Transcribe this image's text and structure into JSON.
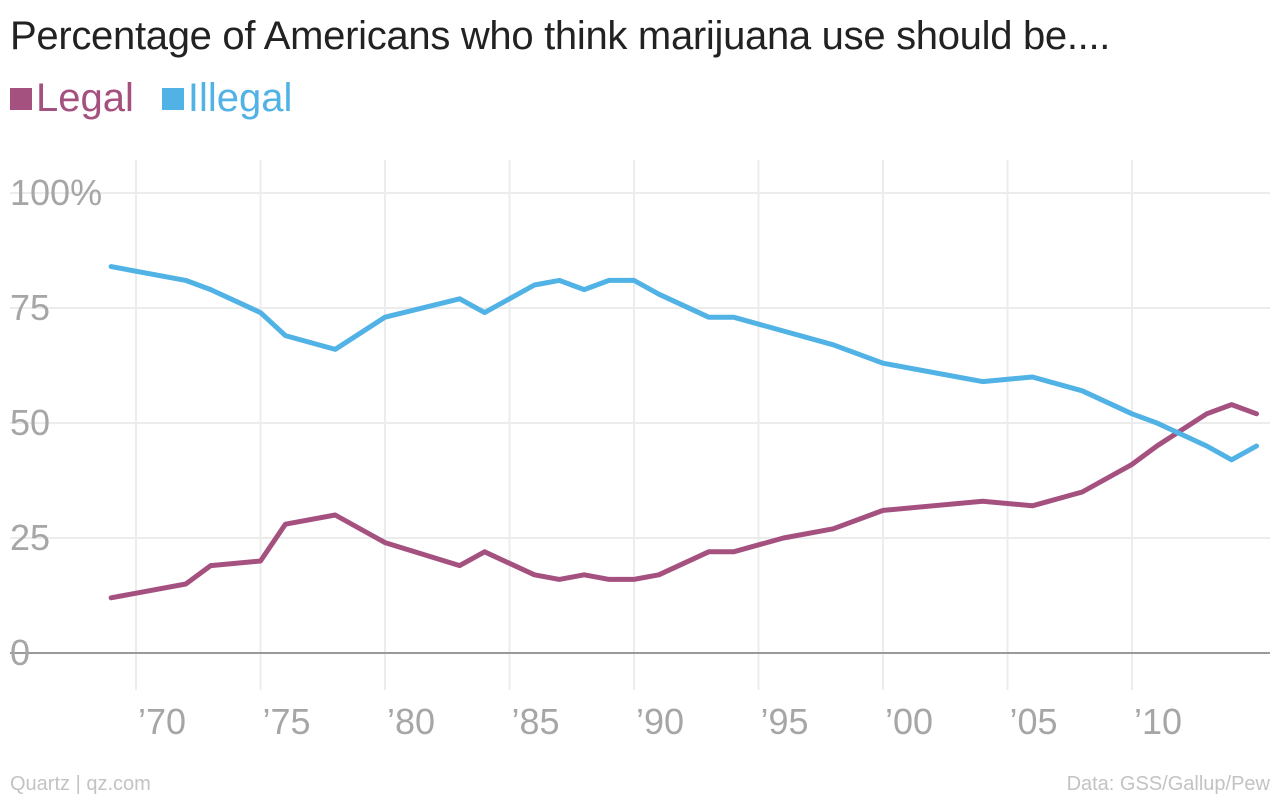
{
  "chart_data": {
    "type": "line",
    "title": "Percentage of Americans who think marijuana use should be....",
    "xlabel": "",
    "ylabel": "",
    "ylim": [
      0,
      100
    ],
    "xlim": [
      1969,
      2015
    ],
    "yticks": [
      0,
      25,
      50,
      75,
      100
    ],
    "ytick_labels": [
      "0",
      "25",
      "50",
      "75",
      "100%"
    ],
    "xticks": [
      1970,
      1975,
      1980,
      1985,
      1990,
      1995,
      2000,
      2005,
      2010
    ],
    "xtick_labels": [
      "’70",
      "’75",
      "’80",
      "’85",
      "’90",
      "’95",
      "’00",
      "’05",
      "’10"
    ],
    "grid": true,
    "legend_position": "top-left",
    "series": [
      {
        "name": "Legal",
        "color": "#a5517f",
        "x": [
          1969,
          1972,
          1973,
          1975,
          1976,
          1978,
          1980,
          1983,
          1984,
          1986,
          1987,
          1988,
          1989,
          1990,
          1991,
          1993,
          1994,
          1996,
          1998,
          2000,
          2004,
          2006,
          2008,
          2010,
          2011,
          2013,
          2014,
          2015
        ],
        "y": [
          12,
          15,
          19,
          20,
          28,
          30,
          24,
          19,
          22,
          17,
          16,
          17,
          16,
          16,
          17,
          22,
          22,
          25,
          27,
          31,
          33,
          32,
          35,
          41,
          45,
          52,
          54,
          52
        ]
      },
      {
        "name": "Illegal",
        "color": "#51b2e5",
        "x": [
          1969,
          1972,
          1973,
          1975,
          1976,
          1978,
          1980,
          1983,
          1984,
          1986,
          1987,
          1988,
          1989,
          1990,
          1991,
          1993,
          1994,
          1996,
          1998,
          2000,
          2004,
          2006,
          2008,
          2010,
          2011,
          2013,
          2014,
          2015
        ],
        "y": [
          84,
          81,
          79,
          74,
          69,
          66,
          73,
          77,
          74,
          80,
          81,
          79,
          81,
          81,
          78,
          73,
          73,
          70,
          67,
          63,
          59,
          60,
          57,
          52,
          50,
          45,
          42,
          45
        ]
      }
    ]
  },
  "footer": {
    "source_left": "Quartz | qz.com",
    "source_right": "Data: GSS/Gallup/Pew"
  }
}
